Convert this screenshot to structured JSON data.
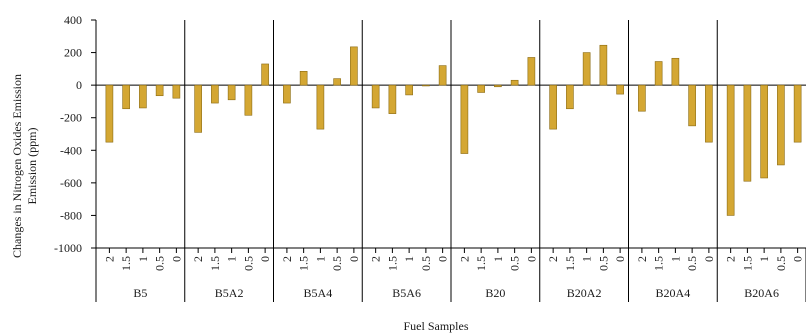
{
  "chart_data": {
    "type": "bar",
    "ylabel": "Changes in Nitrogen Oxides Emission Emission (ppm)",
    "ylabel_lines": [
      "Changes in Nitrogen Oxides Emission",
      "Emission (ppm)"
    ],
    "xlabel": "Fuel Samples",
    "ylim": [
      -1000,
      400
    ],
    "yticks": [
      400,
      200,
      0,
      -200,
      -400,
      -600,
      -800,
      -1000
    ],
    "bar_color": "#d4a733",
    "bar_edge_color": "#8a6a12",
    "grid": false,
    "legend": "none",
    "sub_categories": [
      "2",
      "1.5",
      "1",
      "0.5",
      "0"
    ],
    "groups": [
      {
        "name": "B5",
        "values": [
          -350,
          -145,
          -140,
          -65,
          -80
        ]
      },
      {
        "name": "B5A2",
        "values": [
          -290,
          -110,
          -90,
          -185,
          130
        ]
      },
      {
        "name": "B5A4",
        "values": [
          -110,
          85,
          -270,
          40,
          235
        ]
      },
      {
        "name": "B5A6",
        "values": [
          -140,
          -175,
          -60,
          -5,
          120
        ]
      },
      {
        "name": "B20",
        "values": [
          -420,
          -45,
          -10,
          30,
          170
        ]
      },
      {
        "name": "B20A2",
        "values": [
          -270,
          -145,
          200,
          245,
          -55
        ]
      },
      {
        "name": "B20A4",
        "values": [
          -160,
          145,
          165,
          -250,
          -350
        ]
      },
      {
        "name": "B20A6",
        "values": [
          -800,
          -590,
          -570,
          -490,
          -350
        ]
      }
    ]
  }
}
